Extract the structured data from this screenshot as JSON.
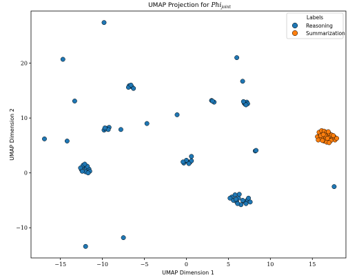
{
  "chart_data": {
    "type": "scatter",
    "title": "UMAP Projection for Phi_joint",
    "title_parts": {
      "prefix": "UMAP Projection for ",
      "italic": "Phi",
      "subscript": "joint"
    },
    "xlabel": "UMAP Dimension 1",
    "ylabel": "UMAP Dimension 2",
    "xlim": [
      -18.5,
      19.0
    ],
    "ylim": [
      -15.5,
      29.5
    ],
    "xticks": [
      -15,
      -10,
      -5,
      0,
      5,
      10,
      15
    ],
    "yticks": [
      -10,
      0,
      10,
      20
    ],
    "xtick_labels": [
      "−15",
      "−10",
      "−5",
      "0",
      "5",
      "10",
      "15"
    ],
    "ytick_labels": [
      "−10",
      "0",
      "10",
      "20"
    ],
    "grid": false,
    "legend": {
      "title": "Labels",
      "placement": "top-right"
    },
    "series": [
      {
        "name": "Reasoning",
        "color": "#1f77b4",
        "points": [
          [
            -9.8,
            27.4
          ],
          [
            -14.7,
            20.7
          ],
          [
            -13.3,
            13.1
          ],
          [
            -16.9,
            6.2
          ],
          [
            -14.2,
            5.8
          ],
          [
            -12.0,
            -13.4
          ],
          [
            -7.5,
            -11.8
          ],
          [
            -4.7,
            9.0
          ],
          [
            -1.1,
            10.6
          ],
          [
            -7.8,
            7.9
          ],
          [
            6.0,
            21.0
          ],
          [
            6.7,
            16.7
          ],
          [
            17.6,
            -2.5
          ],
          [
            -6.8,
            15.9
          ],
          [
            -6.5,
            15.7
          ],
          [
            -6.3,
            15.4
          ],
          [
            -6.9,
            15.6
          ],
          [
            -6.6,
            16.0
          ],
          [
            3.0,
            13.2
          ],
          [
            3.3,
            12.9
          ],
          [
            3.1,
            13.1
          ],
          [
            6.9,
            12.7
          ],
          [
            7.2,
            12.9
          ],
          [
            7.0,
            12.5
          ],
          [
            7.3,
            12.6
          ],
          [
            6.8,
            13.0
          ],
          [
            7.1,
            12.4
          ],
          [
            -9.8,
            7.8
          ],
          [
            -9.5,
            8.1
          ],
          [
            -9.2,
            8.3
          ],
          [
            -9.6,
            8.0
          ],
          [
            -9.3,
            7.9
          ],
          [
            -9.7,
            8.2
          ],
          [
            -12.5,
            0.6
          ],
          [
            -12.2,
            1.1
          ],
          [
            -11.9,
            0.8
          ],
          [
            -12.0,
            0.2
          ],
          [
            -11.6,
            0.7
          ],
          [
            -12.3,
            1.4
          ],
          [
            -11.8,
            1.2
          ],
          [
            -12.6,
            0.9
          ],
          [
            -11.5,
            0.3
          ],
          [
            -12.1,
            1.6
          ],
          [
            -11.7,
            0.0
          ],
          [
            -12.4,
            0.3
          ],
          [
            -0.3,
            1.8
          ],
          [
            0.1,
            2.1
          ],
          [
            0.4,
            1.9
          ],
          [
            0.0,
            2.3
          ],
          [
            -0.4,
            2.0
          ],
          [
            0.6,
            2.2
          ],
          [
            0.6,
            3.0
          ],
          [
            0.3,
            1.7
          ],
          [
            8.2,
            4.0
          ],
          [
            8.3,
            4.1
          ],
          [
            5.4,
            -4.4
          ],
          [
            5.8,
            -4.0
          ],
          [
            6.2,
            -4.6
          ],
          [
            6.0,
            -5.3
          ],
          [
            5.6,
            -5.0
          ],
          [
            6.5,
            -5.8
          ],
          [
            6.9,
            -5.2
          ],
          [
            7.3,
            -4.9
          ],
          [
            7.6,
            -5.3
          ],
          [
            5.2,
            -4.6
          ],
          [
            6.3,
            -3.9
          ],
          [
            6.7,
            -5.0
          ],
          [
            7.1,
            -5.6
          ],
          [
            5.9,
            -4.8
          ],
          [
            6.1,
            -5.6
          ],
          [
            7.4,
            -4.6
          ]
        ]
      },
      {
        "name": "Summarization",
        "color": "#ff7f0e",
        "points": [
          [
            15.6,
            6.6
          ],
          [
            15.9,
            7.0
          ],
          [
            16.2,
            7.3
          ],
          [
            16.5,
            7.1
          ],
          [
            16.8,
            6.8
          ],
          [
            17.1,
            6.5
          ],
          [
            17.4,
            6.2
          ],
          [
            17.7,
            6.0
          ],
          [
            16.0,
            6.2
          ],
          [
            16.3,
            6.5
          ],
          [
            16.6,
            6.4
          ],
          [
            16.9,
            6.1
          ],
          [
            17.2,
            5.9
          ],
          [
            16.4,
            5.8
          ],
          [
            16.7,
            5.6
          ],
          [
            17.0,
            5.5
          ],
          [
            15.8,
            7.4
          ],
          [
            16.1,
            7.7
          ],
          [
            16.4,
            7.6
          ],
          [
            16.7,
            7.4
          ],
          [
            17.0,
            7.2
          ],
          [
            17.3,
            6.9
          ],
          [
            17.6,
            6.6
          ],
          [
            17.9,
            6.3
          ],
          [
            15.7,
            6.0
          ],
          [
            16.2,
            5.9
          ],
          [
            16.5,
            6.9
          ],
          [
            16.8,
            6.3
          ],
          [
            17.5,
            6.8
          ],
          [
            16.0,
            6.8
          ],
          [
            16.3,
            7.0
          ],
          [
            16.9,
            7.5
          ]
        ]
      }
    ]
  }
}
